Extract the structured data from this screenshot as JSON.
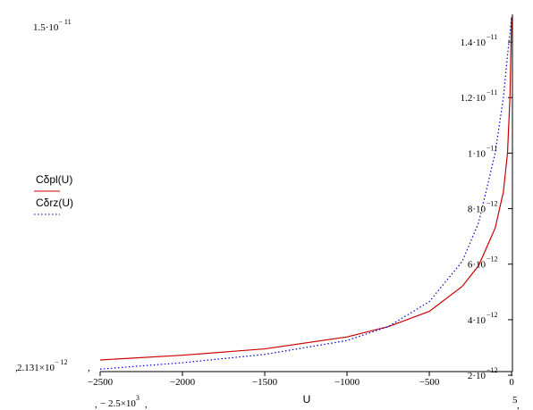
{
  "chart_data": {
    "type": "line",
    "xlabel": "U",
    "xlim": [
      -2500,
      5
    ],
    "ylim": [
      2.131e-12,
      1.5e-11
    ],
    "x_ticks": [
      {
        "value": -2500,
        "label": "−2500"
      },
      {
        "value": -2000,
        "label": "−2000"
      },
      {
        "value": -1500,
        "label": "−1500"
      },
      {
        "value": -1000,
        "label": "−1000"
      },
      {
        "value": -500,
        "label": "−500"
      },
      {
        "value": 0,
        "label": "0"
      }
    ],
    "y_ticks": [
      {
        "value": 2e-12,
        "mantissa": "2·10",
        "exp": "−12"
      },
      {
        "value": 4e-12,
        "mantissa": "4·10",
        "exp": "−12"
      },
      {
        "value": 6e-12,
        "mantissa": "6·10",
        "exp": "−12"
      },
      {
        "value": 8e-12,
        "mantissa": "8·10",
        "exp": "−12"
      },
      {
        "value": 1e-11,
        "mantissa": "1·10",
        "exp": "−11"
      },
      {
        "value": 1.2e-11,
        "mantissa": "1.2·10",
        "exp": "−11"
      },
      {
        "value": 1.4e-11,
        "mantissa": "1.4·10",
        "exp": "−11"
      }
    ],
    "range_labels": {
      "ymax": {
        "mantissa": "1.5·10",
        "exp": "− 11"
      },
      "ymin": {
        "mantissa": "2.131×10",
        "exp": "− 12"
      },
      "xmin": {
        "mantissa": "− 2.5×10",
        "exp": "3"
      },
      "xmax": "5"
    },
    "series": [
      {
        "name": "Cδpl(U)",
        "color": "#cc0000",
        "style": "solid",
        "points": [
          [
            -2500,
            2.55e-12
          ],
          [
            -2000,
            2.72e-12
          ],
          [
            -1500,
            2.95e-12
          ],
          [
            -1000,
            3.38e-12
          ],
          [
            -750,
            3.75e-12
          ],
          [
            -500,
            4.3e-12
          ],
          [
            -300,
            5.2e-12
          ],
          [
            -200,
            5.95e-12
          ],
          [
            -100,
            7.3e-12
          ],
          [
            -50,
            8.6e-12
          ],
          [
            -25,
            1e-11
          ],
          [
            -10,
            1.2e-11
          ],
          [
            -5,
            1.35e-11
          ],
          [
            0,
            1.49e-11
          ]
        ]
      },
      {
        "name": "Cδrz(U)",
        "color": "#0000cc",
        "style": "dotted",
        "points": [
          [
            -2500,
            2.22e-12
          ],
          [
            -2000,
            2.45e-12
          ],
          [
            -1500,
            2.75e-12
          ],
          [
            -1000,
            3.25e-12
          ],
          [
            -750,
            3.75e-12
          ],
          [
            -500,
            4.65e-12
          ],
          [
            -300,
            6.1e-12
          ],
          [
            -200,
            7.5e-12
          ],
          [
            -100,
            1e-11
          ],
          [
            -50,
            1.2e-11
          ],
          [
            -20,
            1.38e-11
          ],
          [
            0,
            1.49e-11
          ]
        ]
      }
    ]
  }
}
